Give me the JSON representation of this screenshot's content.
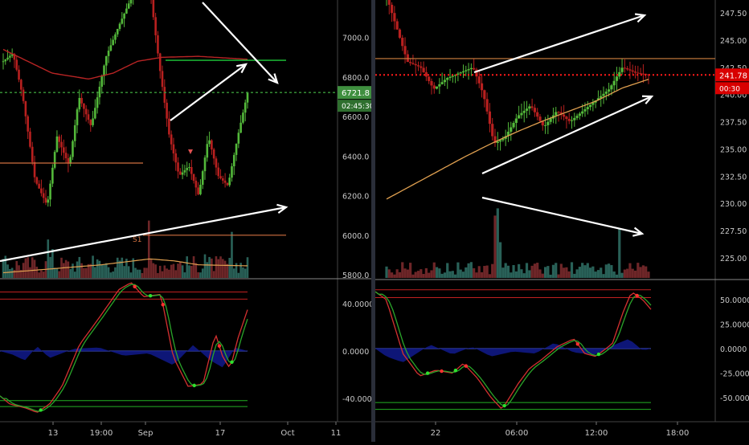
{
  "colors": {
    "background": "#000000",
    "up_candle": "#53b83a",
    "down_candle": "#b8201f",
    "vol_up": "#2e6b62",
    "vol_down": "#7a2a2c",
    "ma_red": "#b82424",
    "ma_orange": "#e0a050",
    "green_line": "#1fcc3a",
    "red_dotted": "#ff1a1a",
    "arrow": "#ffffff",
    "osc_red": "#d43030",
    "osc_green": "#2aa52a",
    "osc_blue_fill": "#101a8c",
    "level_green": "#23b023",
    "level_red": "#c02020",
    "axis_text": "#c8c8c8",
    "price_tag_green": "#3f8f3f",
    "price_tag_red": "#d80000"
  },
  "chart_data": [
    {
      "type": "candlestick",
      "panel": "left",
      "y_axis_ticks": [
        "7000.0",
        "6800.0",
        "6600.0",
        "6400.0",
        "6200.0",
        "6000.0",
        "5800.0"
      ],
      "ylim": [
        5800,
        7200
      ],
      "x_axis_ticks": [
        "13",
        "19:00",
        "Sep",
        "17",
        "Oct",
        "11"
      ],
      "last_price_tag": "6721.8",
      "countdown_tag": "02:45:30",
      "line_labels": [
        "S1"
      ],
      "oscillator_ticks": [
        "40.0000",
        "0.0000",
        "-40.0000"
      ]
    },
    {
      "type": "candlestick",
      "panel": "right",
      "y_axis_ticks": [
        "247.50",
        "245.00",
        "242.50",
        "240.00",
        "237.50",
        "235.00",
        "232.50",
        "230.00",
        "227.50",
        "225.00"
      ],
      "ylim": [
        222.5,
        248.8
      ],
      "x_axis_ticks": [
        "22",
        "06:00",
        "12:00",
        "18:00"
      ],
      "last_price_tag": "241.78",
      "countdown_tag": "00:30",
      "oscillator_ticks": [
        "50.0000",
        "25.0000",
        "0.0000",
        "-25.0000",
        "-50.0000"
      ]
    }
  ]
}
